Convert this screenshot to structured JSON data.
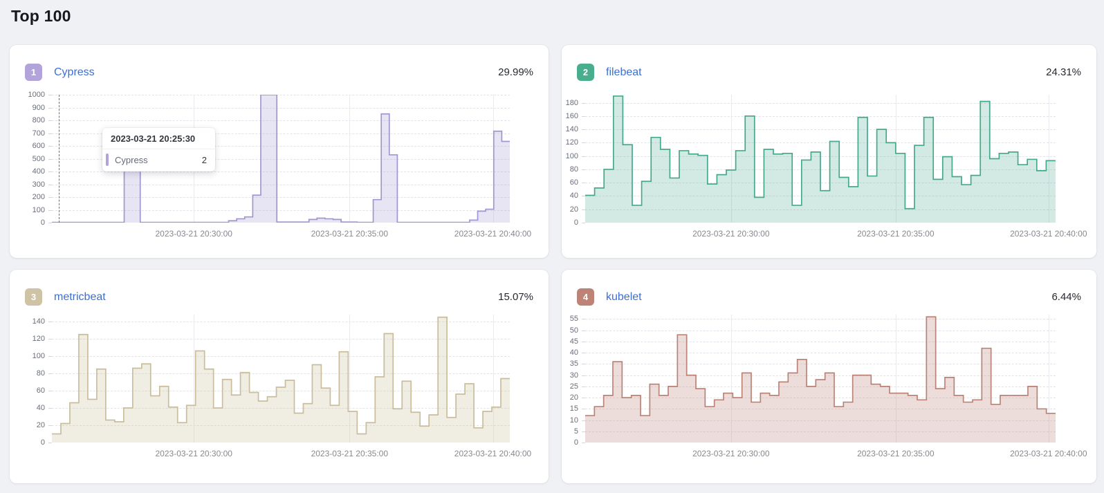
{
  "page": {
    "title": "Top 100"
  },
  "tooltip": {
    "title": "2023-03-21 20:25:30",
    "series_label": "Cypress",
    "value": "2",
    "marker_color": "#b2a4da"
  },
  "chart_data": [
    {
      "type": "area",
      "rank": "1",
      "name": "Cypress",
      "percent": "29.99%",
      "badge_color": "#b2a4da",
      "line_color": "#a395cf",
      "fill_opacity": 0.26,
      "ylim": [
        0,
        1000
      ],
      "y_ticks": [
        0,
        100,
        200,
        300,
        400,
        500,
        600,
        700,
        800,
        900,
        1000
      ],
      "x_labels": [
        "2023-03-21 20:30:00",
        "2023-03-21 20:35:00",
        "2023-03-21 20:40:00"
      ],
      "x_positions": [
        0.31,
        0.65,
        0.963
      ],
      "values": [
        2,
        2,
        2,
        2,
        2,
        2,
        2,
        2,
        2,
        500,
        500,
        2,
        2,
        2,
        2,
        2,
        2,
        2,
        2,
        2,
        2,
        2,
        15,
        30,
        45,
        215,
        1000,
        1000,
        5,
        5,
        5,
        5,
        25,
        35,
        30,
        25,
        5,
        5,
        2,
        2,
        180,
        850,
        530,
        2,
        2,
        2,
        2,
        2,
        2,
        2,
        2,
        2,
        20,
        90,
        105,
        715,
        635
      ],
      "cursor_x_fraction": 0.015
    },
    {
      "type": "area",
      "rank": "2",
      "name": "filebeat",
      "percent": "24.31%",
      "badge_color": "#49ae8d",
      "line_color": "#44a98a",
      "fill_opacity": 0.24,
      "ylim": [
        0,
        192
      ],
      "y_ticks": [
        0,
        20,
        40,
        60,
        80,
        100,
        120,
        140,
        160,
        180
      ],
      "x_labels": [
        "2023-03-21 20:30:00",
        "2023-03-21 20:35:00",
        "2023-03-21 20:40:00"
      ],
      "x_positions": [
        0.31,
        0.66,
        0.985
      ],
      "values": [
        41,
        52,
        80,
        190,
        117,
        26,
        62,
        128,
        110,
        67,
        108,
        103,
        101,
        58,
        72,
        79,
        108,
        160,
        38,
        110,
        103,
        104,
        26,
        94,
        106,
        48,
        122,
        68,
        54,
        158,
        70,
        140,
        120,
        104,
        21,
        116,
        158,
        65,
        99,
        69,
        57,
        71,
        182,
        96,
        104,
        106,
        87,
        95,
        78,
        93
      ]
    },
    {
      "type": "area",
      "rank": "3",
      "name": "metricbeat",
      "percent": "15.07%",
      "badge_color": "#cec3a5",
      "line_color": "#c9bd9c",
      "fill_opacity": 0.28,
      "ylim": [
        0,
        148
      ],
      "y_ticks": [
        0,
        20,
        40,
        60,
        80,
        100,
        120,
        140
      ],
      "x_labels": [
        "2023-03-21 20:30:00",
        "2023-03-21 20:35:00",
        "2023-03-21 20:40:00"
      ],
      "x_positions": [
        0.31,
        0.65,
        0.963
      ],
      "values": [
        10,
        22,
        46,
        125,
        50,
        85,
        26,
        24,
        40,
        86,
        91,
        54,
        65,
        41,
        23,
        43,
        106,
        85,
        40,
        73,
        55,
        81,
        58,
        48,
        53,
        64,
        72,
        34,
        45,
        90,
        63,
        43,
        105,
        36,
        10,
        23,
        76,
        126,
        39,
        71,
        35,
        19,
        32,
        145,
        29,
        56,
        68,
        17,
        36,
        41,
        74
      ]
    },
    {
      "type": "area",
      "rank": "4",
      "name": "kubelet",
      "percent": "6.44%",
      "badge_color": "#bd8377",
      "line_color": "#bd8276",
      "fill_opacity": 0.27,
      "ylim": [
        0,
        57
      ],
      "y_ticks": [
        0,
        5,
        10,
        15,
        20,
        25,
        30,
        35,
        40,
        45,
        50,
        55
      ],
      "x_labels": [
        "2023-03-21 20:30:00",
        "2023-03-21 20:35:00",
        "2023-03-21 20:40:00"
      ],
      "x_positions": [
        0.31,
        0.66,
        0.985
      ],
      "values": [
        12,
        16,
        21,
        36,
        20,
        21,
        12,
        26,
        21,
        25,
        48,
        30,
        24,
        16,
        19,
        22,
        20,
        31,
        18,
        22,
        21,
        27,
        31,
        37,
        25,
        28,
        31,
        16,
        18,
        30,
        30,
        26,
        25,
        22,
        22,
        21,
        19,
        56,
        24,
        29,
        21,
        18,
        19,
        42,
        17,
        21,
        21,
        21,
        25,
        15,
        13
      ]
    }
  ]
}
